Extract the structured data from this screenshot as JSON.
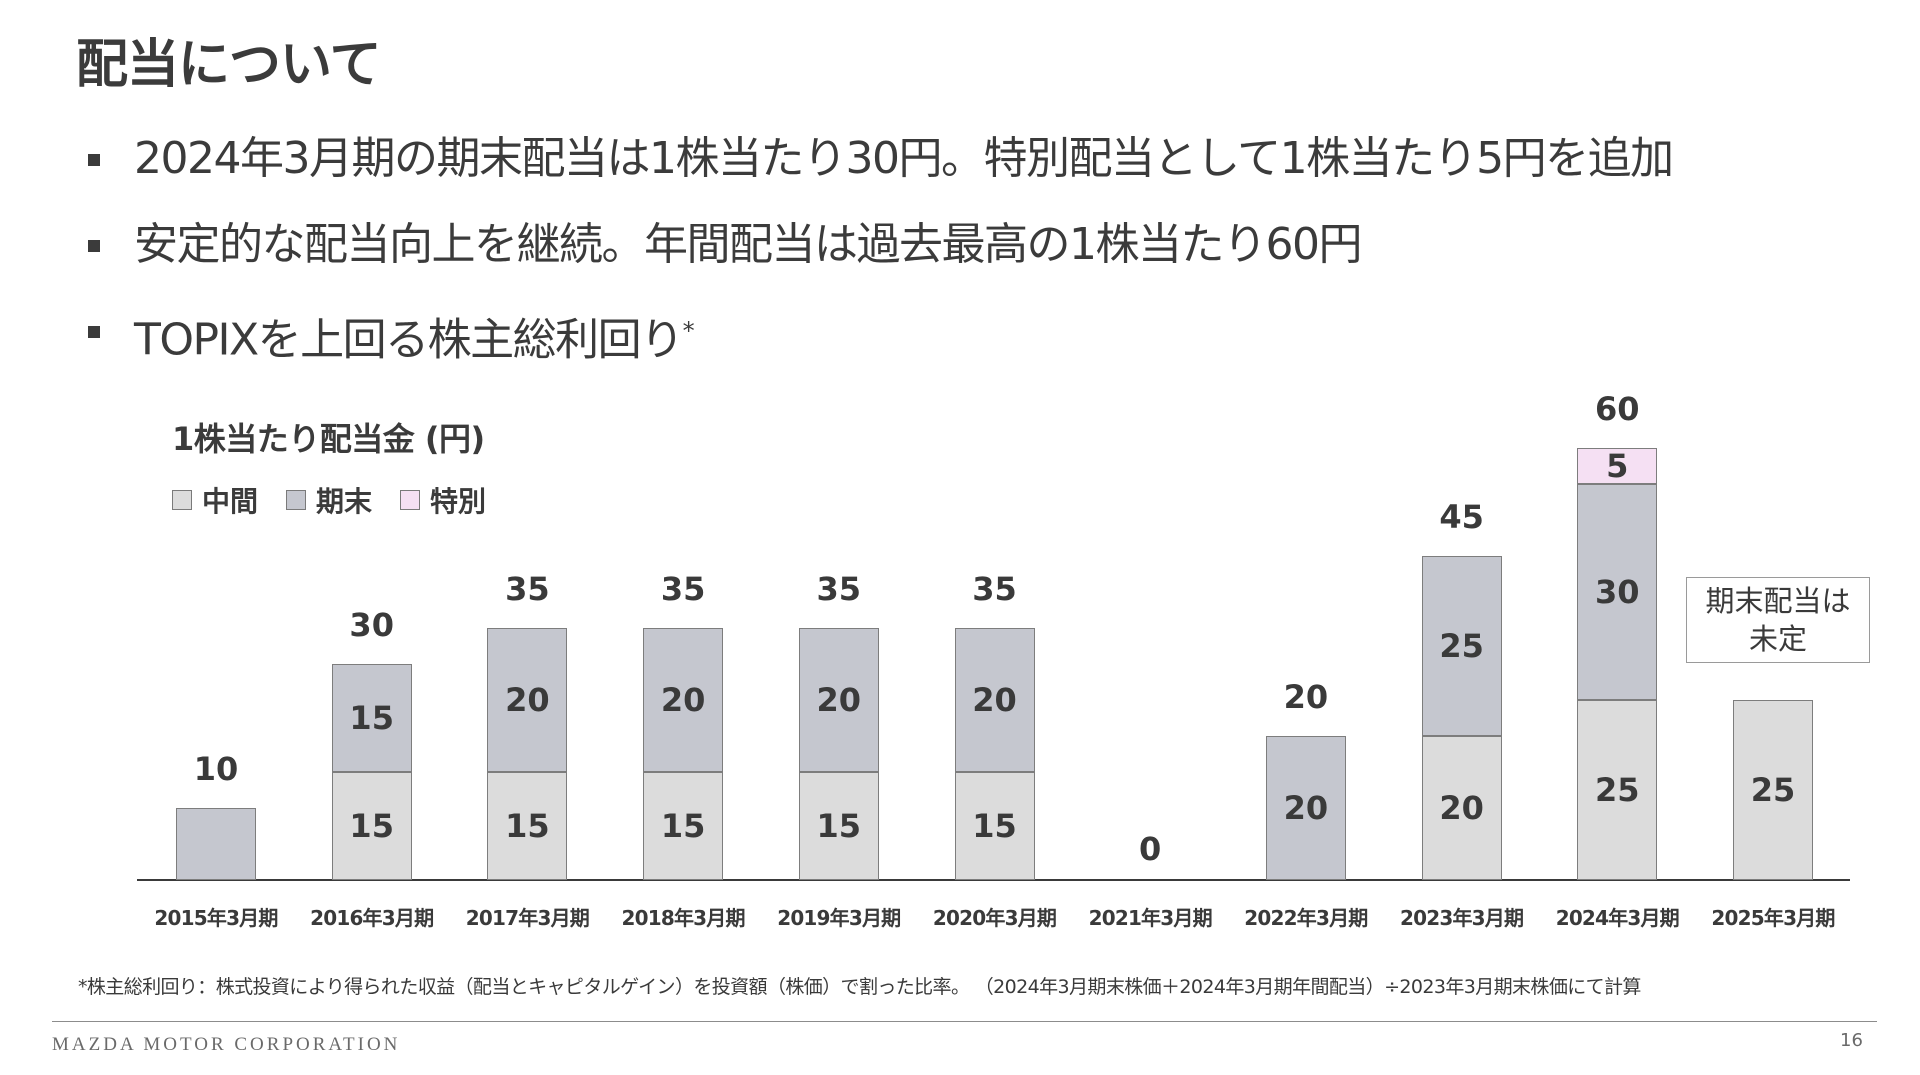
{
  "slide": {
    "title": "配当について",
    "bullets": [
      {
        "text": "2024年3月期の期末配当は1株当たり30円。特別配当として1株当たり5円を追加",
        "sup": ""
      },
      {
        "text": "安定的な配当向上を継続。年間配当は過去最高の1株当たり60円",
        "sup": ""
      },
      {
        "text": "TOPIXを上回る株主総利回り",
        "sup": "*"
      }
    ],
    "footnote": "*株主総利回り：株式投資により得られた収益（配当とキャピタルゲイン）を投資額（株価）で割った比率。 （2024年3月期末株価＋2024年3月期年間配当）÷2023年3月期末株価にて計算",
    "footer": {
      "brand": "MAZDA MOTOR CORPORATION",
      "page_number": "16"
    }
  },
  "chart_data": {
    "type": "bar",
    "stacked": true,
    "title": "1株当たり配当金 (円)",
    "xlabel": "",
    "ylabel": "円",
    "categories": [
      "2015年3月期",
      "2016年3月期",
      "2017年3月期",
      "2018年3月期",
      "2019年3月期",
      "2020年3月期",
      "2021年3月期",
      "2022年3月期",
      "2023年3月期",
      "2024年3月期",
      "2025年3月期"
    ],
    "series": [
      {
        "name": "中間",
        "color": "#dcdcdc",
        "values": [
          0,
          15,
          15,
          15,
          15,
          15,
          0,
          0,
          20,
          25,
          25
        ]
      },
      {
        "name": "期末",
        "color": "#c5c7cf",
        "values": [
          10,
          15,
          20,
          20,
          20,
          20,
          0,
          20,
          25,
          30,
          0
        ]
      },
      {
        "name": "特別",
        "color": "#f5e0f3",
        "values": [
          0,
          0,
          0,
          0,
          0,
          0,
          0,
          0,
          0,
          5,
          0
        ]
      }
    ],
    "totals": [
      10,
      30,
      35,
      35,
      35,
      35,
      0,
      20,
      45,
      60,
      null
    ],
    "annotations": [
      {
        "category": "2025年3月期",
        "text_lines": [
          "期末配当は",
          "未定"
        ]
      }
    ],
    "legend_position": "top-left",
    "grid": false,
    "ylim": [
      0,
      60
    ]
  }
}
